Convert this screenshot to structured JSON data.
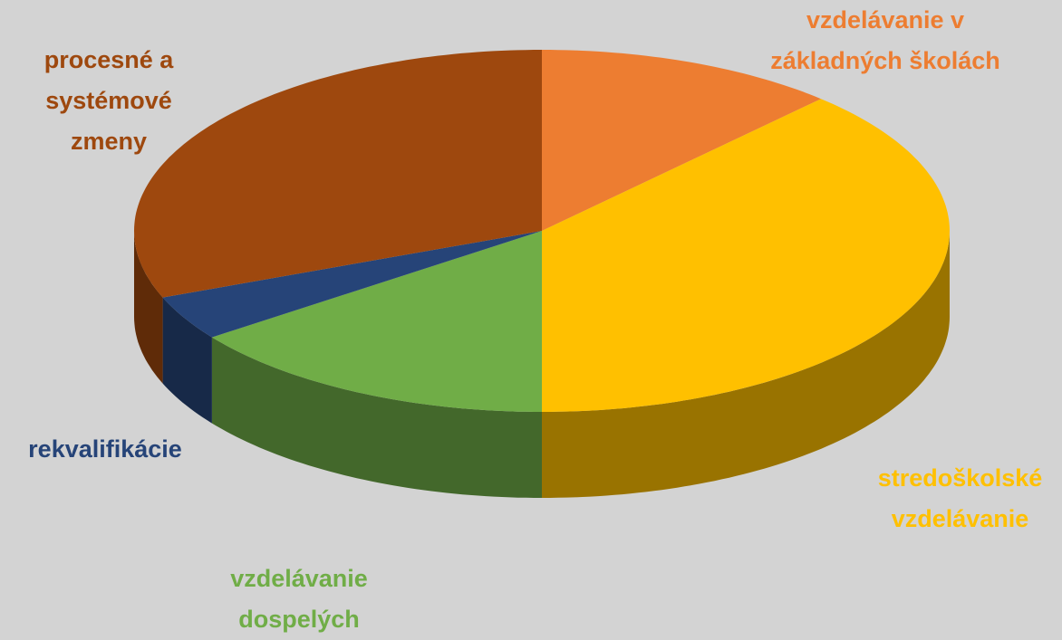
{
  "chart_data": {
    "type": "pie",
    "categories": [
      "vzdelávanie v základných školách",
      "stredoškolské vzdelávanie",
      "vzdelávanie dospelých",
      "rekvalifikácie",
      "procesné a systémové zmeny"
    ],
    "values": [
      12,
      38,
      15,
      4,
      31
    ],
    "colors": [
      "#ed7d31",
      "#ffc000",
      "#70ad47",
      "#264478",
      "#9e480e"
    ]
  }
}
